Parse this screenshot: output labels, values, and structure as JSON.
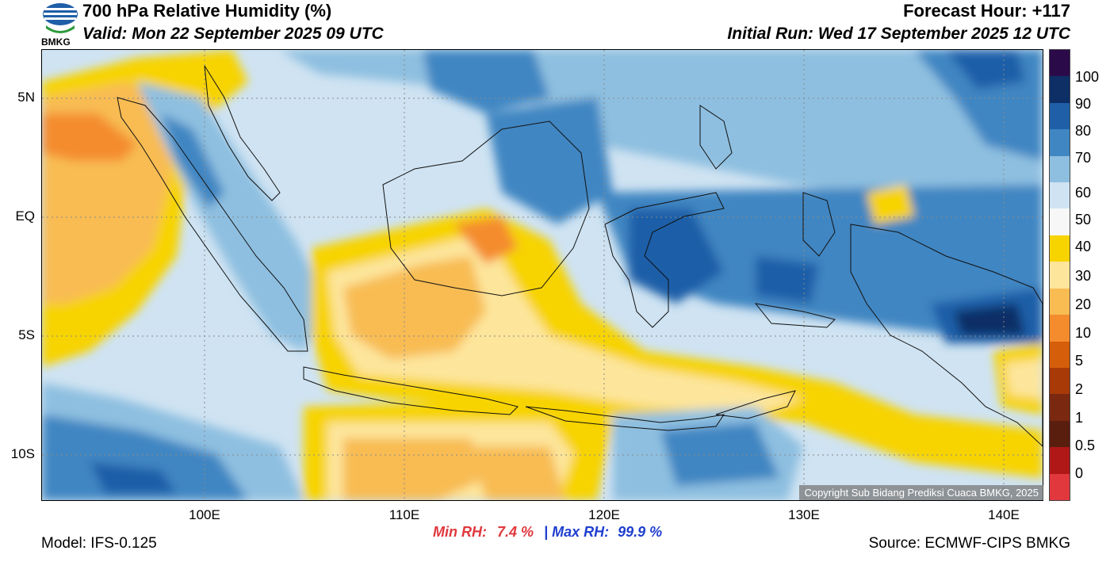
{
  "header": {
    "title": "700 hPa Relative Humidity (%)",
    "valid": "Valid: Mon 22 September 2025 09 UTC",
    "forecast_hour": "Forecast Hour: +117",
    "initial_run": "Initial Run: Wed 17 September 2025 12 UTC",
    "logo_text": "BMKG"
  },
  "axes": {
    "lat_labels": [
      "5N",
      "EQ",
      "5S",
      "10S"
    ],
    "lon_labels": [
      "100E",
      "110E",
      "120E",
      "130E",
      "140E"
    ],
    "lat_range": [
      -12,
      7
    ],
    "lon_range": [
      92,
      142
    ]
  },
  "colorbar": {
    "labels": [
      "100",
      "90",
      "80",
      "70",
      "60",
      "50",
      "40",
      "30",
      "20",
      "10",
      "5",
      "2",
      "1",
      "0.5",
      "0"
    ],
    "colors": [
      "#2b0a4a",
      "#0d2f66",
      "#1f5fa8",
      "#3f86c2",
      "#8ebfe0",
      "#cfe3f2",
      "#f7f7f7",
      "#f7d300",
      "#fde59b",
      "#f8bc52",
      "#f48c2d",
      "#d55e0a",
      "#a83a08",
      "#7a2810",
      "#5a1e0e",
      "#b01818",
      "#e0383d"
    ]
  },
  "stats": {
    "min_label": "Min RH:",
    "min_value": "7.4 %",
    "separator": "|",
    "max_label": "Max RH:",
    "max_value": "99.9 %"
  },
  "footer": {
    "model": "Model: IFS-0.125",
    "source": "Source: ECMWF-CIPS BMKG",
    "copyright": "Copyright Sub Bidang Prediksi Cuaca BMKG, 2025"
  }
}
